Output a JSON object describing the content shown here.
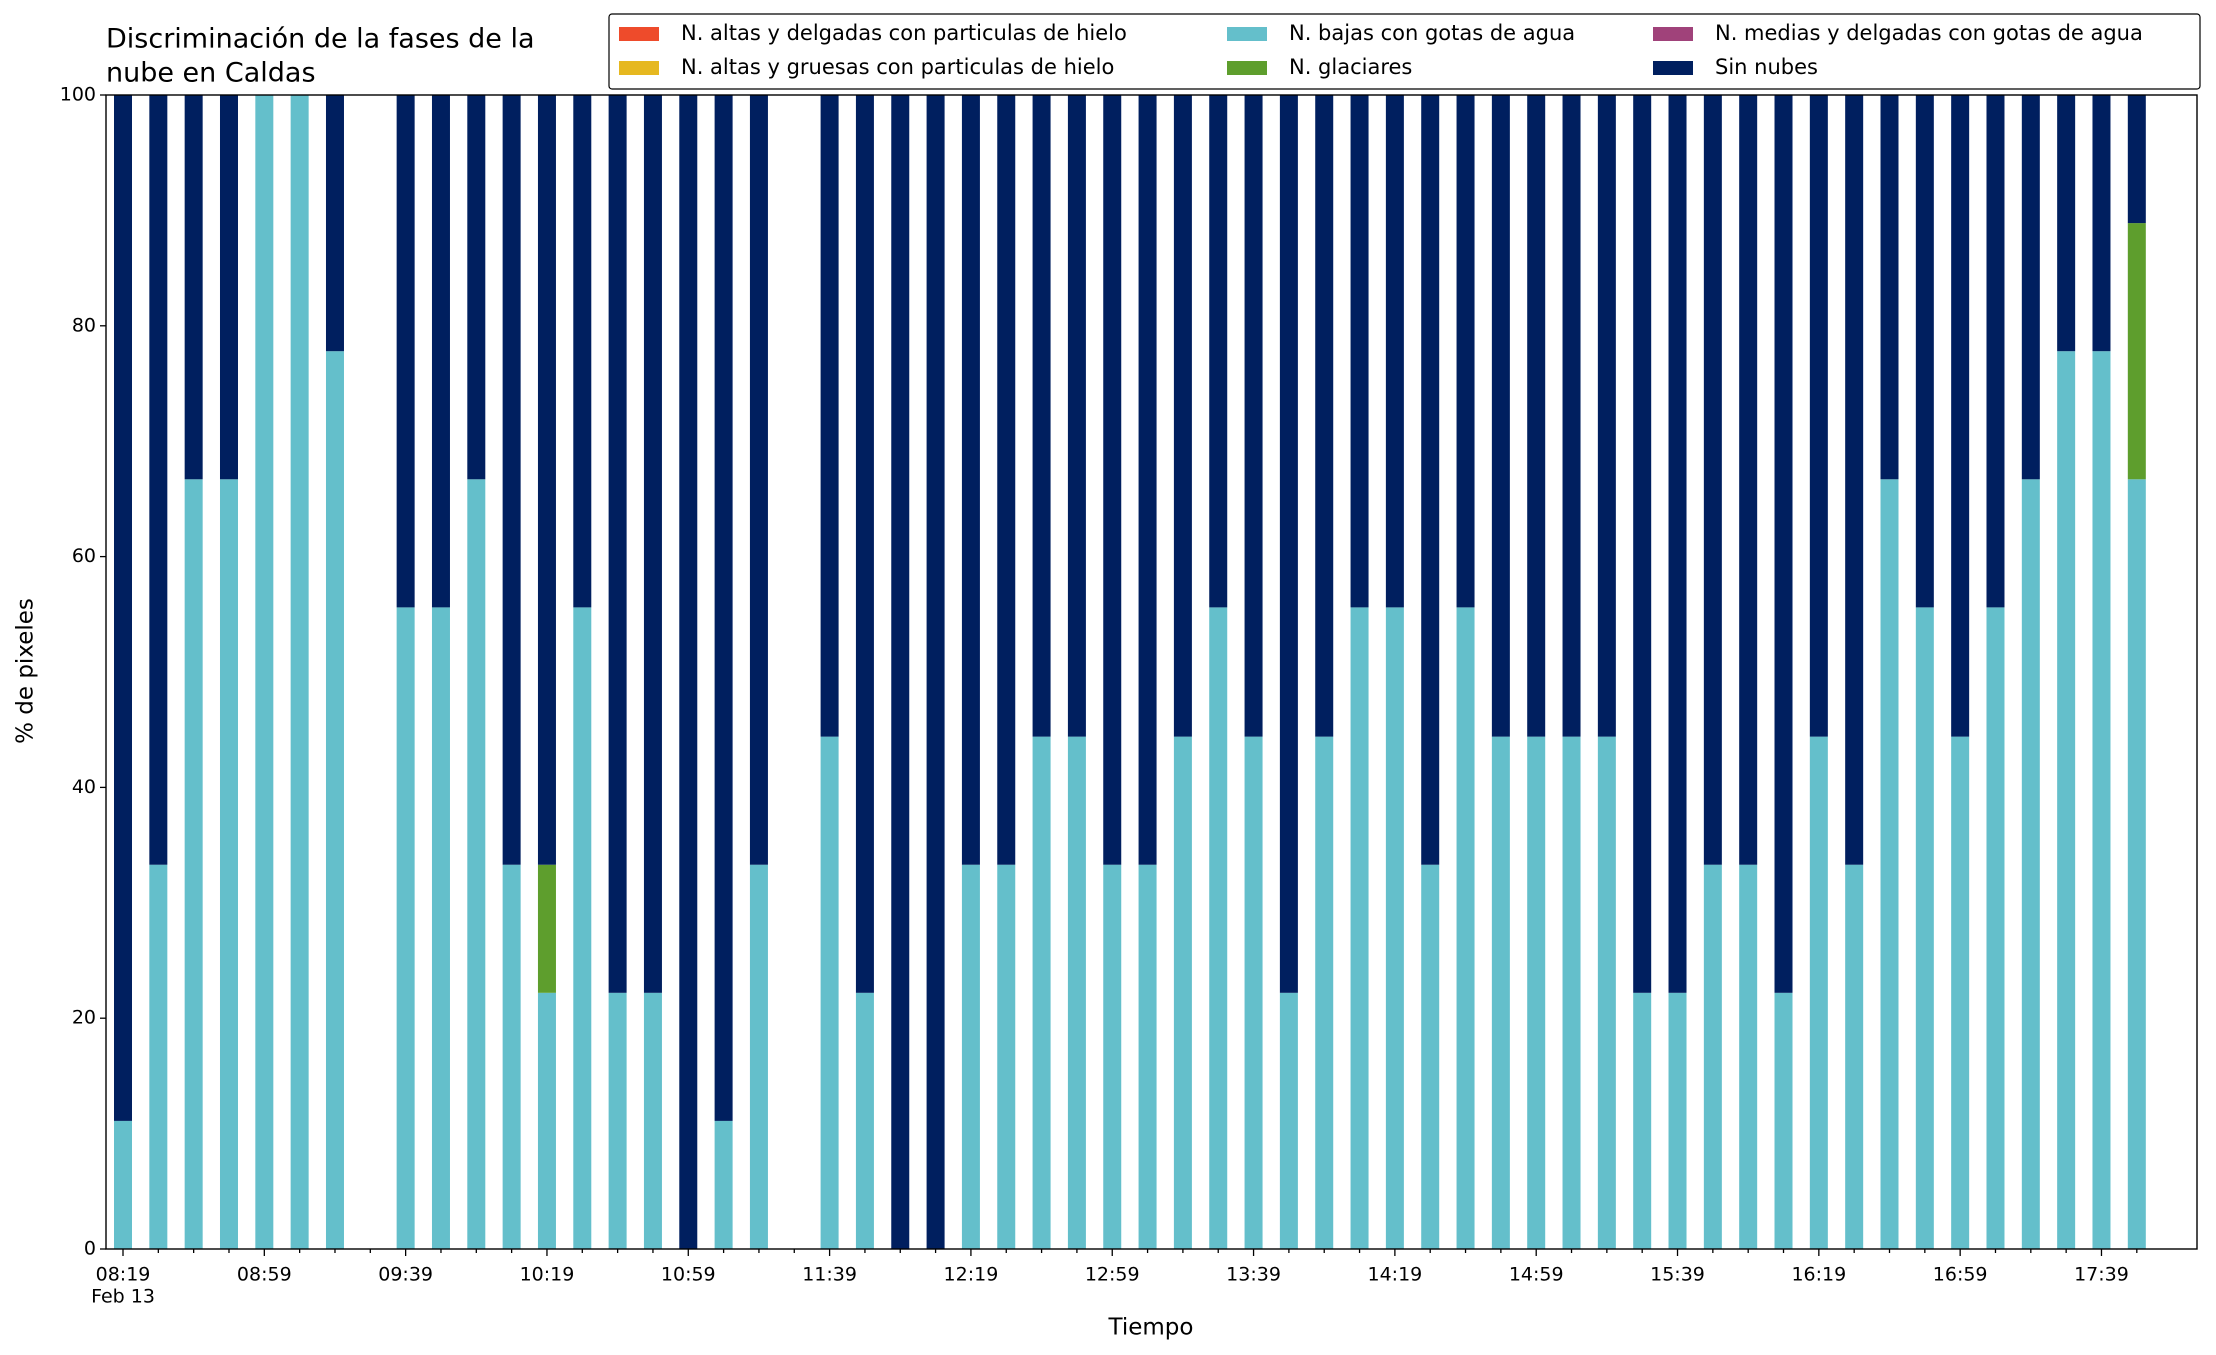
{
  "chart_data": {
    "type": "stacked_bar",
    "title": [
      "Discriminación de la fases de la",
      "nube en Caldas"
    ],
    "x_label": "Tiempo",
    "y_label": "% de pixeles",
    "x_sublabel": "Feb 13",
    "categories": [
      "08:19",
      null,
      null,
      null,
      "08:59",
      null,
      null,
      null,
      "09:39",
      null,
      null,
      null,
      "10:19",
      null,
      null,
      null,
      "10:59",
      null,
      null,
      null,
      "11:39",
      null,
      null,
      null,
      "12:19",
      null,
      null,
      null,
      "12:59",
      null,
      null,
      null,
      "13:39",
      null,
      null,
      null,
      "14:19",
      null,
      null,
      null,
      "14:59",
      null,
      null,
      null,
      "15:39",
      null,
      null,
      null,
      "16:19",
      null,
      null,
      null,
      "16:59",
      null,
      null,
      null,
      "17:39",
      null
    ],
    "ylim": [
      0,
      100
    ],
    "yticks": [
      0,
      20,
      40,
      60,
      80,
      100
    ],
    "legend": "upper right",
    "series": [
      {
        "name": "N. altas y delgadas con particulas de hielo",
        "color": "#ee4b2b",
        "values": [
          0,
          0,
          0,
          0,
          0,
          0,
          0,
          null,
          0,
          0,
          0,
          0,
          0,
          0,
          0,
          0,
          0,
          0,
          0,
          null,
          0,
          0,
          0,
          0,
          0,
          0,
          0,
          0,
          0,
          0,
          0,
          0,
          0,
          0,
          0,
          0,
          0,
          0,
          0,
          0,
          0,
          0,
          0,
          0,
          0,
          0,
          0,
          0,
          0,
          0,
          0,
          0,
          0,
          0,
          0,
          0,
          0,
          0
        ]
      },
      {
        "name": "N. altas y gruesas con particulas de hielo",
        "color": "#e6b820",
        "values": [
          0,
          0,
          0,
          0,
          0,
          0,
          0,
          null,
          0,
          0,
          0,
          0,
          0,
          0,
          0,
          0,
          0,
          0,
          0,
          null,
          0,
          0,
          0,
          0,
          0,
          0,
          0,
          0,
          0,
          0,
          0,
          0,
          0,
          0,
          0,
          0,
          0,
          0,
          0,
          0,
          0,
          0,
          0,
          0,
          0,
          0,
          0,
          0,
          0,
          0,
          0,
          0,
          0,
          0,
          0,
          0,
          0,
          0
        ]
      },
      {
        "name": "N. bajas con gotas de agua",
        "color": "#64bfcb",
        "values": [
          11.1,
          33.3,
          66.7,
          66.7,
          100,
          100,
          77.8,
          null,
          55.6,
          55.6,
          66.7,
          33.3,
          22.2,
          55.6,
          22.2,
          22.2,
          0,
          11.1,
          33.3,
          null,
          44.4,
          22.2,
          0,
          0,
          33.3,
          33.3,
          44.4,
          44.4,
          33.3,
          33.3,
          44.4,
          55.6,
          44.4,
          22.2,
          44.4,
          55.6,
          55.6,
          33.3,
          55.6,
          44.4,
          44.4,
          44.4,
          44.4,
          22.2,
          22.2,
          33.3,
          33.3,
          22.2,
          44.4,
          33.3,
          66.7,
          55.6,
          44.4,
          55.6,
          66.7,
          77.8,
          77.8,
          66.7
        ]
      },
      {
        "name": "N. glaciares",
        "color": "#5e9e2d",
        "values": [
          0,
          0,
          0,
          0,
          0,
          0,
          0,
          null,
          0,
          0,
          0,
          0,
          11.1,
          0,
          0,
          0,
          0,
          0,
          0,
          null,
          0,
          0,
          0,
          0,
          0,
          0,
          0,
          0,
          0,
          0,
          0,
          0,
          0,
          0,
          0,
          0,
          0,
          0,
          0,
          0,
          0,
          0,
          0,
          0,
          0,
          0,
          0,
          0,
          0,
          0,
          0,
          0,
          0,
          0,
          0,
          0,
          0,
          22.2
        ]
      },
      {
        "name": "N. medias y delgadas con gotas de agua",
        "color": "#a0427a",
        "values": [
          0,
          0,
          0,
          0,
          0,
          0,
          0,
          null,
          0,
          0,
          0,
          0,
          0,
          0,
          0,
          0,
          0,
          0,
          0,
          null,
          0,
          0,
          0,
          0,
          0,
          0,
          0,
          0,
          0,
          0,
          0,
          0,
          0,
          0,
          0,
          0,
          0,
          0,
          0,
          0,
          0,
          0,
          0,
          0,
          0,
          0,
          0,
          0,
          0,
          0,
          0,
          0,
          0,
          0,
          0,
          0,
          0,
          0
        ]
      },
      {
        "name": "Sin nubes",
        "color": "#001f5f",
        "values": [
          88.9,
          66.7,
          33.3,
          33.3,
          0,
          0,
          22.2,
          null,
          44.4,
          44.4,
          33.3,
          66.7,
          66.7,
          44.4,
          77.8,
          77.8,
          100,
          88.9,
          66.7,
          null,
          55.6,
          77.8,
          100,
          100,
          66.7,
          66.7,
          55.6,
          55.6,
          66.7,
          66.7,
          55.6,
          44.4,
          55.6,
          77.8,
          55.6,
          44.4,
          44.4,
          66.7,
          44.4,
          55.6,
          55.6,
          55.6,
          55.6,
          77.8,
          77.8,
          66.7,
          66.7,
          77.8,
          55.6,
          66.7,
          33.3,
          44.4,
          55.6,
          44.4,
          33.3,
          22.2,
          22.2,
          11.1
        ]
      }
    ]
  }
}
